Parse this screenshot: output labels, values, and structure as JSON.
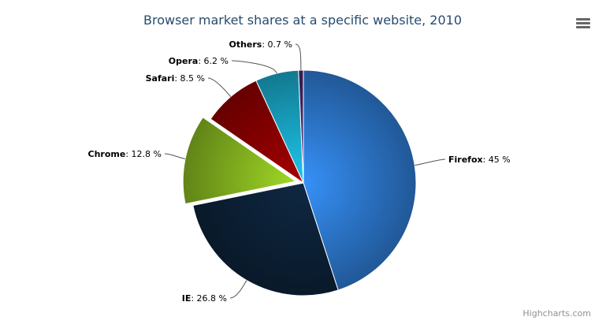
{
  "chart_data": {
    "type": "pie",
    "title": "Browser market shares at a specific website, 2010",
    "unit": "%",
    "slices": [
      {
        "name": "Firefox",
        "value": 45.0,
        "color": "#2f7ed8",
        "sliced": false,
        "label": "45 %"
      },
      {
        "name": "IE",
        "value": 26.8,
        "color": "#0d233a",
        "sliced": false,
        "label": "26.8 %"
      },
      {
        "name": "Chrome",
        "value": 12.8,
        "color": "#8bbc21",
        "sliced": true,
        "label": "12.8 %"
      },
      {
        "name": "Safari",
        "value": 8.5,
        "color": "#910000",
        "sliced": false,
        "label": "8.5 %"
      },
      {
        "name": "Opera",
        "value": 6.2,
        "color": "#1aadce",
        "sliced": false,
        "label": "6.2 %"
      },
      {
        "name": "Others",
        "value": 0.7,
        "color": "#492970",
        "sliced": false,
        "label": "0.7 %"
      }
    ]
  },
  "menu_icon": "hamburger-menu-icon",
  "credits": "Highcharts.com"
}
